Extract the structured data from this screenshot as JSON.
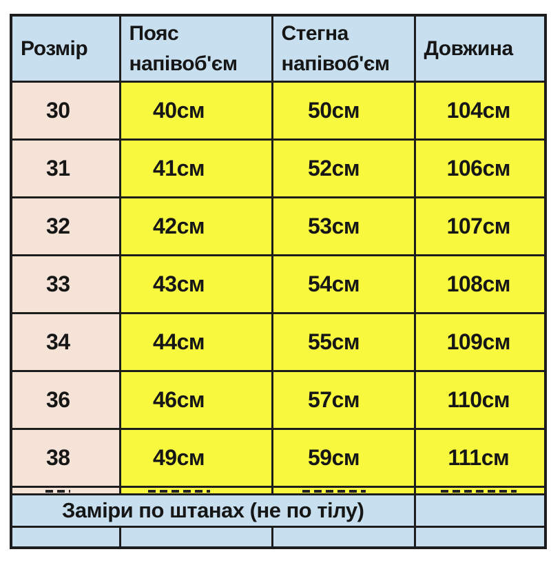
{
  "colors": {
    "page_bg": "#ffffff",
    "header_bg": "#c7dfef",
    "size_bg": "#f6e3d8",
    "value_bg": "#f8f83e",
    "border": "#1d1d1d",
    "text": "#161616"
  },
  "table": {
    "headers": {
      "size": "Розмір",
      "waist_line1": "Пояс",
      "waist_line2": "напівоб'єм",
      "hips_line1": "Стегна",
      "hips_line2": "напівоб'єм",
      "length": "Довжина"
    },
    "rows": [
      {
        "size": "30",
        "waist": "40см",
        "hips": "50см",
        "length": "104см"
      },
      {
        "size": "31",
        "waist": "41см",
        "hips": "52см",
        "length": "106см"
      },
      {
        "size": "32",
        "waist": "42см",
        "hips": "53см",
        "length": "107см"
      },
      {
        "size": "33",
        "waist": "43см",
        "hips": "54см",
        "length": "108см"
      },
      {
        "size": "34",
        "waist": "44см",
        "hips": "55см",
        "length": "109см"
      },
      {
        "size": "36",
        "waist": "46см",
        "hips": "57см",
        "length": "110см"
      },
      {
        "size": "38",
        "waist": "49см",
        "hips": "59см",
        "length": "111см"
      }
    ],
    "note": "Заміри по штанах (не по тілу)"
  }
}
